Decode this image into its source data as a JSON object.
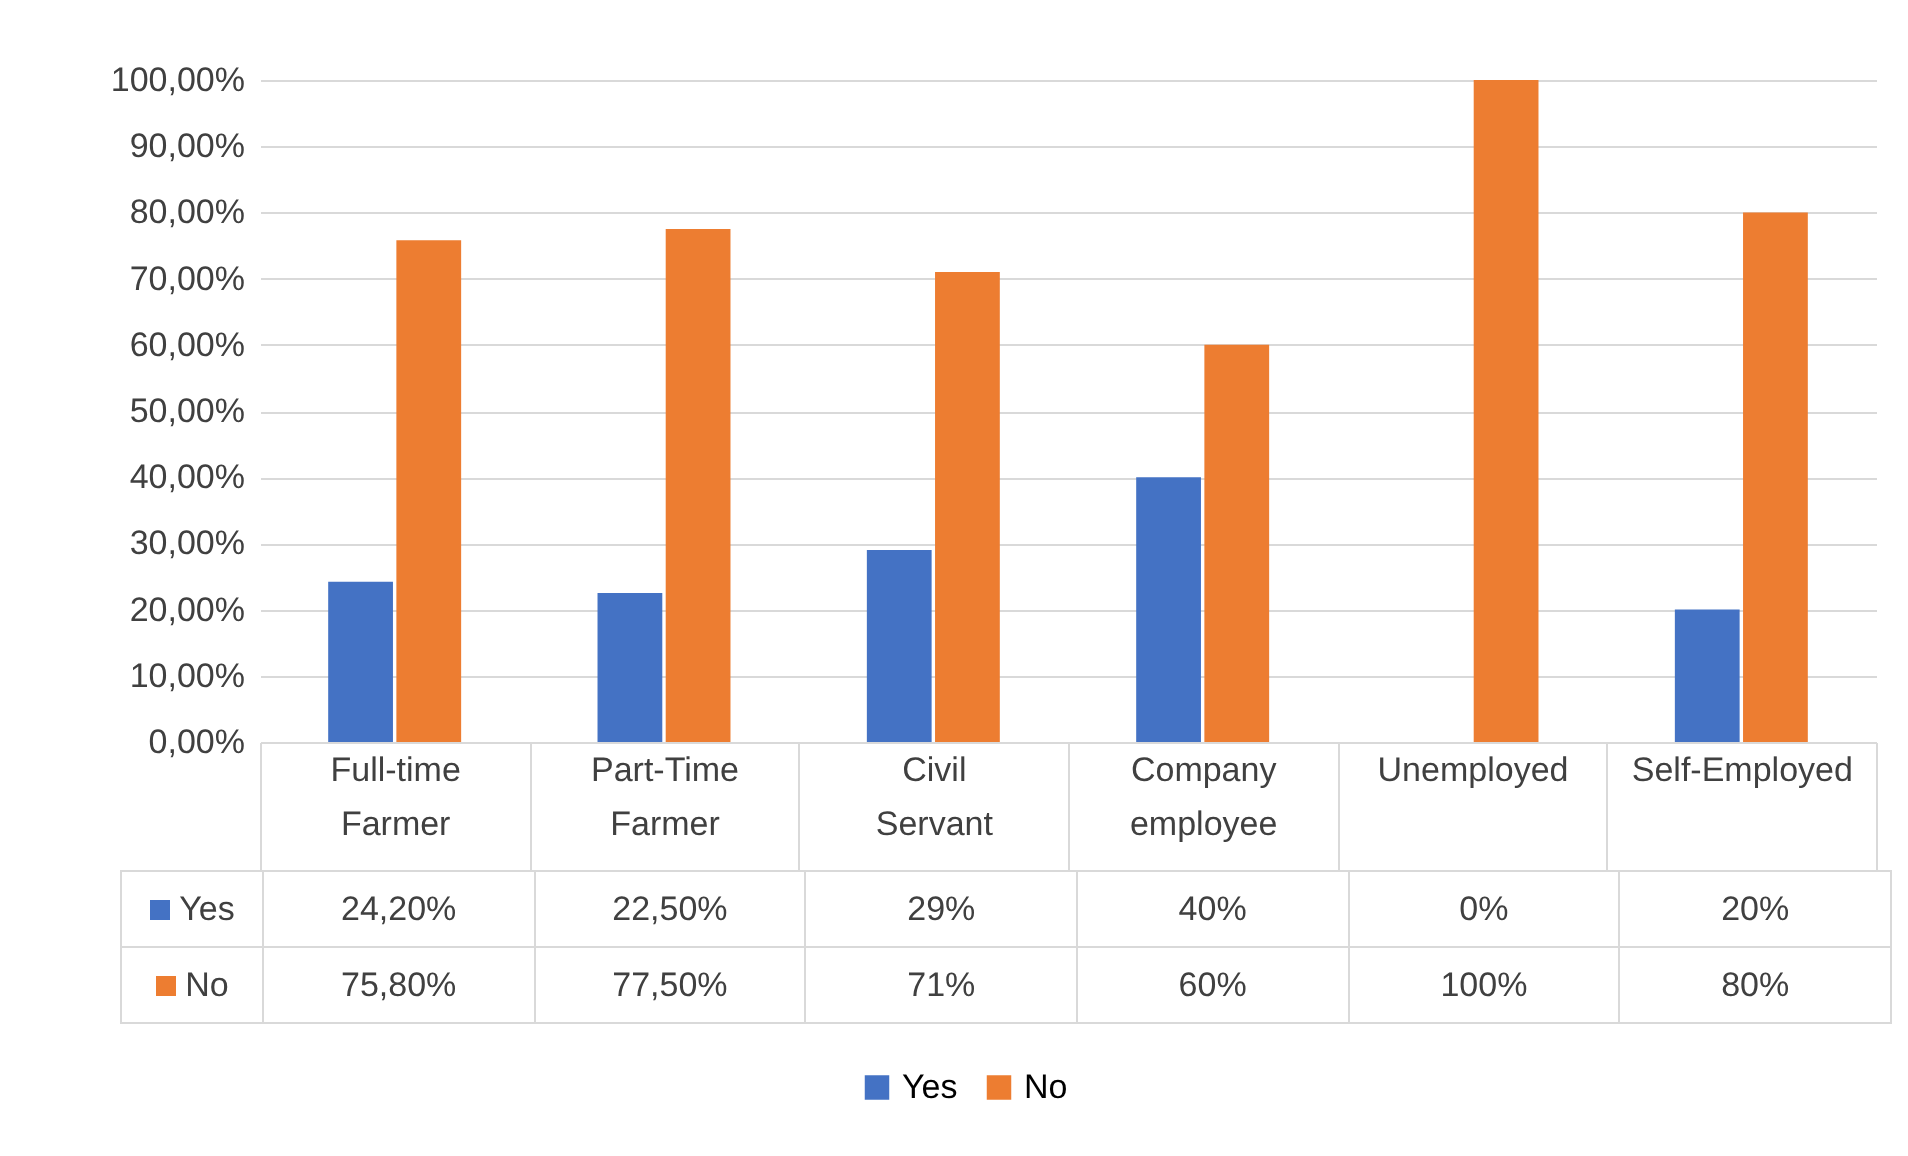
{
  "chart_data": {
    "type": "bar",
    "categories": [
      "Full-time Farmer",
      "Part-Time Farmer",
      "Civil Servant",
      "Company employee",
      "Unemployed",
      "Self-Employed"
    ],
    "series": [
      {
        "name": "Yes",
        "color": "#4472c4",
        "values": [
          24.2,
          22.5,
          29,
          40,
          0,
          20
        ],
        "value_labels": [
          "24,20%",
          "22,50%",
          "29%",
          "40%",
          "0%",
          "20%"
        ]
      },
      {
        "name": "No",
        "color": "#ed7d31",
        "values": [
          75.8,
          77.5,
          71,
          60,
          100,
          80
        ],
        "value_labels": [
          "75,80%",
          "77,50%",
          "71%",
          "60%",
          "100%",
          "80%"
        ]
      }
    ],
    "ylim": [
      0,
      100
    ],
    "yticks": [
      {
        "value": 0,
        "label": "0,00%"
      },
      {
        "value": 10,
        "label": "10,00%"
      },
      {
        "value": 20,
        "label": "20,00%"
      },
      {
        "value": 30,
        "label": "30,00%"
      },
      {
        "value": 40,
        "label": "40,00%"
      },
      {
        "value": 50,
        "label": "50,00%"
      },
      {
        "value": 60,
        "label": "60,00%"
      },
      {
        "value": 70,
        "label": "70,00%"
      },
      {
        "value": 80,
        "label": "80,00%"
      },
      {
        "value": 90,
        "label": "90,00%"
      },
      {
        "value": 100,
        "label": "100,00%"
      }
    ],
    "grid": "y",
    "legend": "bottom"
  }
}
